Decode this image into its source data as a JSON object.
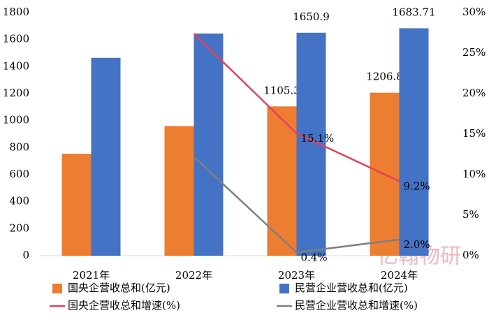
{
  "chart_data": {
    "type": "bar-line",
    "categories": [
      "2021年",
      "2022年",
      "2023年",
      "2024年"
    ],
    "series": [
      {
        "name": "国央企营收总和(亿元)",
        "color": "#ed7d31",
        "kind": "bar",
        "values": [
          755,
          960,
          1105.3,
          1206.8
        ],
        "value_labels": [
          null,
          null,
          "1105.3",
          "1206.8"
        ]
      },
      {
        "name": "民营企业营收总和(亿元)",
        "color": "#4472c4",
        "kind": "bar",
        "values": [
          1465,
          1645,
          1650.9,
          1683.71
        ],
        "value_labels": [
          null,
          null,
          "1650.9",
          "1683.71"
        ]
      },
      {
        "name": "国央企营收总和增速(%)",
        "color": "#e8405a",
        "kind": "line",
        "axis": "y2",
        "values": [
          null,
          27.4,
          15.1,
          9.2
        ],
        "value_labels": [
          null,
          null,
          "15.1%",
          "9.2%"
        ]
      },
      {
        "name": "民营企业营收总和增速(%)",
        "color": "#7f7f7f",
        "kind": "line",
        "axis": "y2",
        "values": [
          null,
          12.2,
          0.4,
          2.0
        ],
        "value_labels": [
          null,
          null,
          "0.4%",
          "2.0%"
        ]
      }
    ],
    "ylim": [
      0,
      1800
    ],
    "yticks": [
      0,
      200,
      400,
      600,
      800,
      1000,
      1200,
      1400,
      1600,
      1800
    ],
    "y2lim": [
      0,
      30
    ],
    "y2ticks": [
      {
        "value": 0,
        "label": "0%"
      },
      {
        "value": 5,
        "label": "5%"
      },
      {
        "value": 10,
        "label": "10%"
      },
      {
        "value": 15,
        "label": "15%"
      },
      {
        "value": 20,
        "label": "20%"
      },
      {
        "value": 25,
        "label": "25%"
      },
      {
        "value": 30,
        "label": "30%"
      }
    ],
    "watermark": "亿翰物研"
  }
}
